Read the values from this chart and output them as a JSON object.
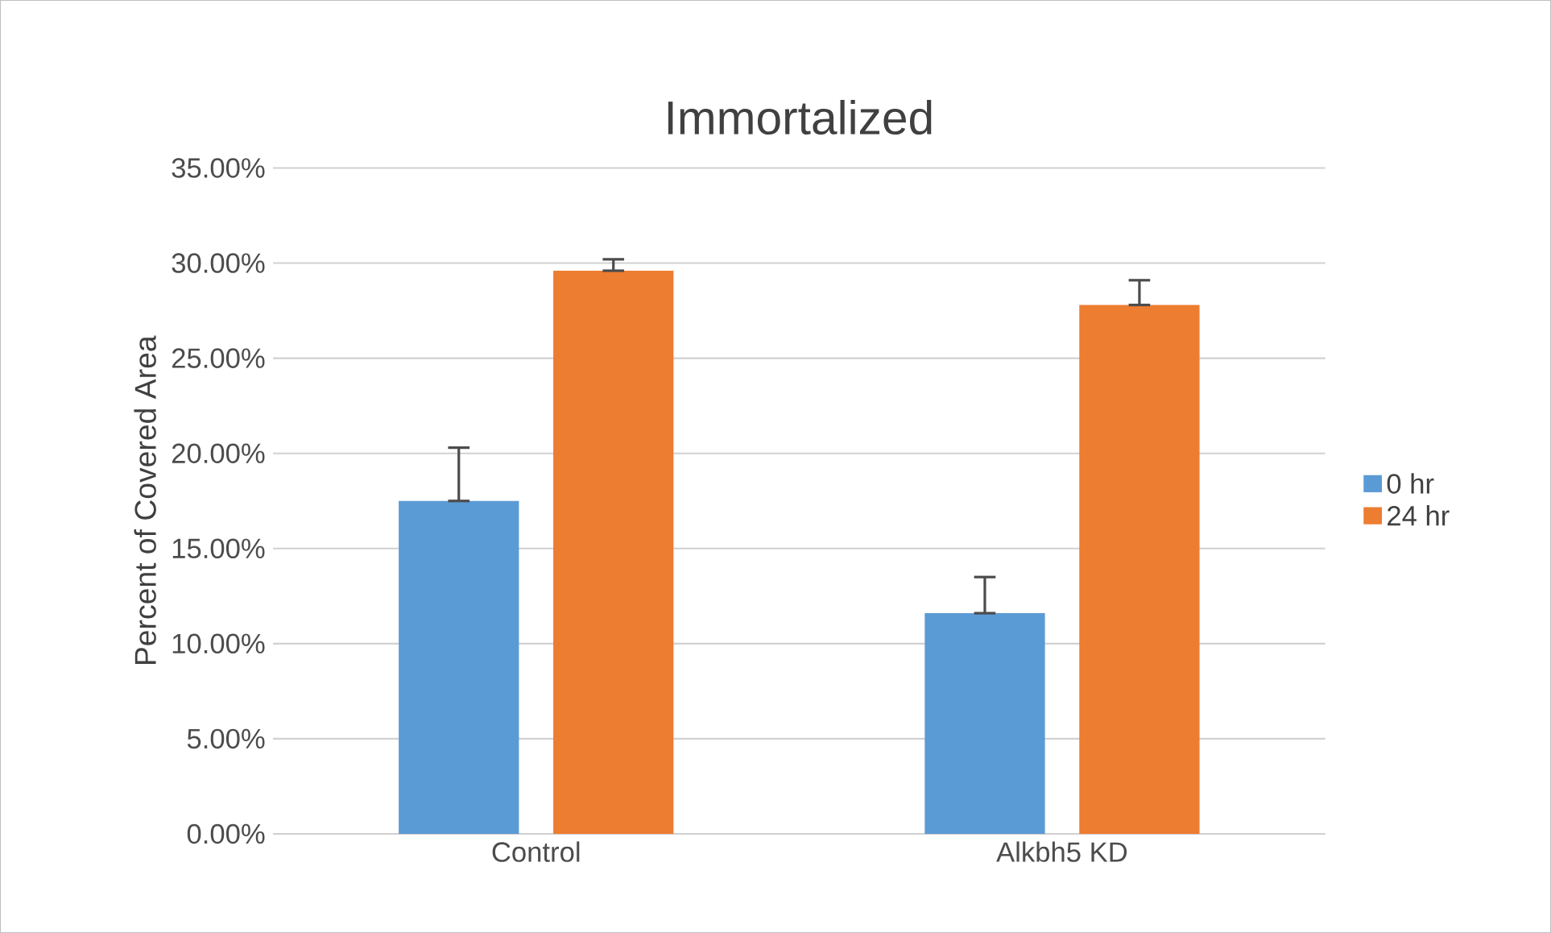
{
  "chart_data": {
    "type": "bar",
    "title": "Immortalized",
    "ylabel": "Percent of Covered Area",
    "categories": [
      "Control",
      "Alkbh5 KD"
    ],
    "series": [
      {
        "name": "0 hr",
        "color": "#5b9bd5",
        "values": [
          17.5,
          11.6
        ],
        "errors": [
          [
            17.5,
            20.3
          ],
          [
            11.6,
            13.5
          ]
        ]
      },
      {
        "name": "24 hr",
        "color": "#ed7d31",
        "values": [
          29.6,
          27.8
        ],
        "errors": [
          [
            29.6,
            30.2
          ],
          [
            27.8,
            29.1
          ]
        ]
      }
    ],
    "ylim": [
      0,
      35
    ],
    "yticks": [
      {
        "value": 0,
        "label": "0.00%"
      },
      {
        "value": 5,
        "label": "5.00%"
      },
      {
        "value": 10,
        "label": "10.00%"
      },
      {
        "value": 15,
        "label": "15.00%"
      },
      {
        "value": 20,
        "label": "20.00%"
      },
      {
        "value": 25,
        "label": "25.00%"
      },
      {
        "value": 30,
        "label": "30.00%"
      },
      {
        "value": 35,
        "label": "35.00%"
      }
    ],
    "grid": "y",
    "legend": "right"
  }
}
